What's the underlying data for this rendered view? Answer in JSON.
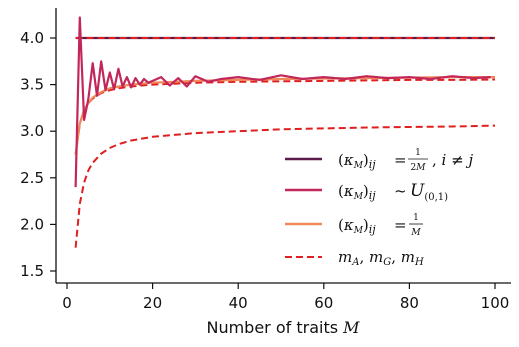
{
  "chart_data": {
    "type": "line",
    "title": "",
    "xlabel": "Number of traits",
    "xlabel_symbol": "M",
    "ylabel": "",
    "xlim": [
      0,
      101
    ],
    "ylim": [
      1.4,
      4.33
    ],
    "xticks": [
      0,
      20,
      40,
      60,
      80,
      100
    ],
    "xtick_labels": [
      "0",
      "20",
      "40",
      "60",
      "80",
      "100"
    ],
    "yticks": [
      1.5,
      2.0,
      2.5,
      3.0,
      3.5,
      4.0
    ],
    "ytick_labels": [
      "1.5",
      "2.0",
      "2.5",
      "3.0",
      "3.5",
      "4.0"
    ],
    "grid": false,
    "legend_position": "lower-right",
    "series": [
      {
        "name": "(κ_M)_ij = 1/(2M), i ≠ j",
        "color": "#5b1a4a",
        "style": "solid",
        "x": [
          2,
          100
        ],
        "y": [
          4.0,
          4.0
        ]
      },
      {
        "name": "(κ_M)_ij ~ U(0,1)",
        "color": "#c2275a",
        "style": "solid",
        "x": [
          2,
          3,
          4,
          5,
          6,
          7,
          8,
          9,
          10,
          11,
          12,
          13,
          14,
          15,
          16,
          17,
          18,
          19,
          20,
          22,
          24,
          26,
          28,
          30,
          33,
          36,
          40,
          45,
          50,
          55,
          60,
          65,
          70,
          75,
          80,
          85,
          90,
          95,
          99
        ],
        "y": [
          2.4,
          4.22,
          3.12,
          3.35,
          3.73,
          3.38,
          3.75,
          3.44,
          3.63,
          3.45,
          3.67,
          3.48,
          3.58,
          3.47,
          3.57,
          3.5,
          3.56,
          3.52,
          3.54,
          3.58,
          3.49,
          3.57,
          3.48,
          3.59,
          3.53,
          3.56,
          3.58,
          3.55,
          3.6,
          3.56,
          3.58,
          3.56,
          3.59,
          3.57,
          3.58,
          3.56,
          3.59,
          3.57,
          3.58
        ]
      },
      {
        "name": "(κ_M)_ij = 1/M",
        "color": "#f0885a",
        "style": "solid",
        "x": [
          2,
          3,
          4,
          5,
          6,
          8,
          10,
          12,
          15,
          20,
          25,
          30,
          40,
          50,
          60,
          70,
          80,
          90,
          100
        ],
        "y": [
          2.75,
          3.08,
          3.23,
          3.3,
          3.36,
          3.42,
          3.46,
          3.48,
          3.5,
          3.52,
          3.53,
          3.54,
          3.55,
          3.56,
          3.565,
          3.57,
          3.575,
          3.58,
          3.58
        ]
      },
      {
        "name": "m_A, m_G, m_H",
        "color": "#e01f1f",
        "style": "dashed",
        "lines": [
          {
            "x": [
              2,
              100
            ],
            "y": [
              4.0,
              4.0
            ]
          },
          {
            "x": [
              2,
              3,
              4,
              5,
              6,
              8,
              10,
              12,
              15,
              20,
              25,
              30,
              40,
              50,
              60,
              70,
              80,
              90,
              100
            ],
            "y": [
              2.75,
              3.08,
              3.23,
              3.3,
              3.35,
              3.41,
              3.44,
              3.46,
              3.48,
              3.5,
              3.51,
              3.52,
              3.53,
              3.535,
              3.54,
              3.545,
              3.55,
              3.55,
              3.555
            ]
          },
          {
            "x": [
              2,
              3,
              4,
              5,
              6,
              8,
              10,
              12,
              15,
              20,
              25,
              30,
              40,
              50,
              60,
              70,
              80,
              90,
              100
            ],
            "y": [
              1.75,
              2.22,
              2.45,
              2.58,
              2.66,
              2.76,
              2.82,
              2.86,
              2.9,
              2.94,
              2.96,
              2.98,
              3.0,
              3.02,
              3.03,
              3.04,
              3.045,
              3.05,
              3.06
            ]
          }
        ]
      }
    ]
  }
}
